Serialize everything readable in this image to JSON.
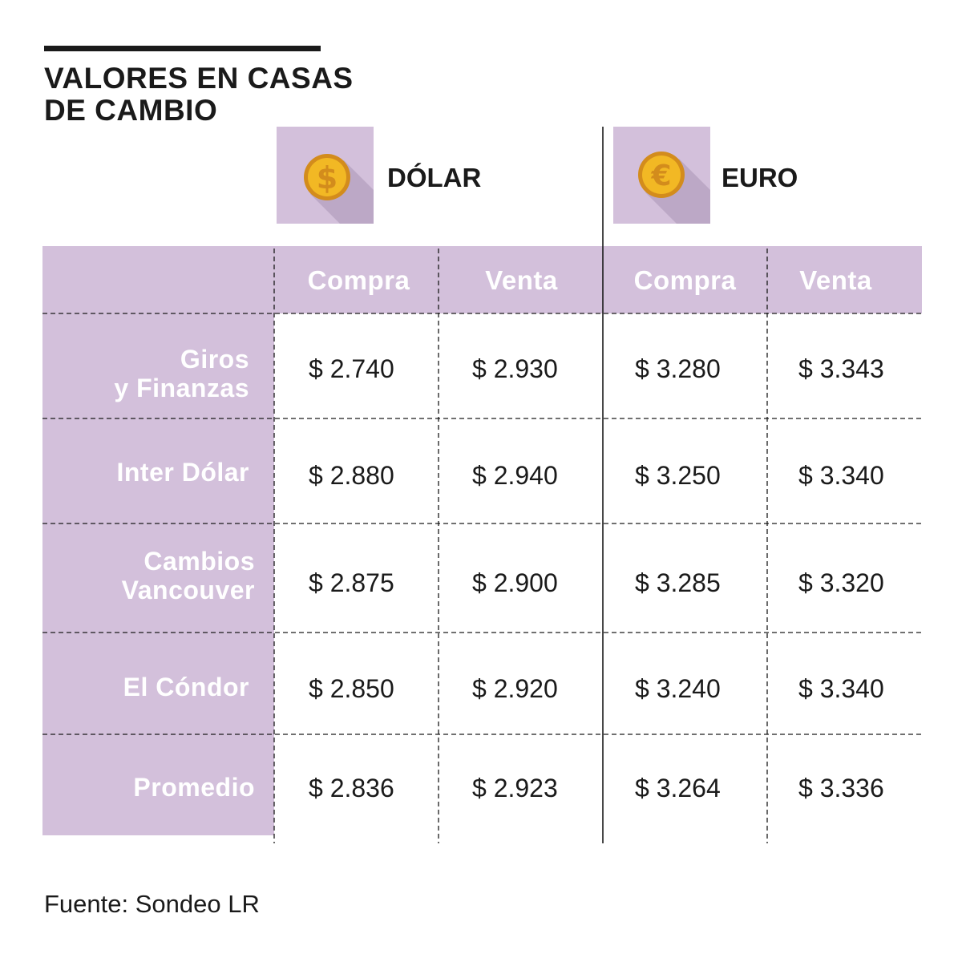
{
  "title_lines": [
    "VALORES EN CASAS",
    "DE CAMBIO"
  ],
  "currencies": [
    {
      "name": "DÓLAR",
      "icon": "dollar-coin-icon",
      "symbol": "$"
    },
    {
      "name": "EURO",
      "icon": "euro-coin-icon",
      "symbol": "€"
    }
  ],
  "columns": [
    "Compra",
    "Venta",
    "Compra",
    "Venta"
  ],
  "rows": [
    {
      "label_lines": [
        "Giros",
        "y Finanzas"
      ],
      "values": [
        "$ 2.740",
        "$ 2.930",
        "$ 3.280",
        "$ 3.343"
      ]
    },
    {
      "label_lines": [
        "Inter Dólar"
      ],
      "values": [
        "$ 2.880",
        "$ 2.940",
        "$ 3.250",
        "$ 3.340"
      ]
    },
    {
      "label_lines": [
        "Cambios",
        "Vancouver"
      ],
      "values": [
        "$ 2.875",
        "$ 2.900",
        "$ 3.285",
        "$ 3.320"
      ]
    },
    {
      "label_lines": [
        "El Cóndor"
      ],
      "values": [
        "$ 2.850",
        "$ 2.920",
        "$ 3.240",
        "$ 3.340"
      ]
    },
    {
      "label_lines": [
        "Promedio"
      ],
      "values": [
        "$ 2.836",
        "$ 2.923",
        "$ 3.264",
        "$ 3.336"
      ]
    }
  ],
  "source": "Fuente: Sondeo LR",
  "colors": {
    "band": "#d3c0db",
    "band_shadow": "#bca8c6",
    "coin": "#f2b824",
    "coin_dark": "#d38c1c",
    "text": "#1a1a1a",
    "header_text": "#ffffff"
  },
  "chart_data": {
    "type": "table",
    "title": "VALORES EN CASAS DE CAMBIO",
    "groups": [
      "DÓLAR",
      "EURO"
    ],
    "columns": [
      "Compra",
      "Venta",
      "Compra",
      "Venta"
    ],
    "rows": [
      "Giros y Finanzas",
      "Inter Dólar",
      "Cambios Vancouver",
      "El Cóndor",
      "Promedio"
    ],
    "series": [
      {
        "name": "DÓLAR Compra",
        "values": [
          2740,
          2880,
          2875,
          2850,
          2836
        ]
      },
      {
        "name": "DÓLAR Venta",
        "values": [
          2930,
          2940,
          2900,
          2920,
          2923
        ]
      },
      {
        "name": "EURO Compra",
        "values": [
          3280,
          3250,
          3285,
          3240,
          3264
        ]
      },
      {
        "name": "EURO Venta",
        "values": [
          3343,
          3340,
          3320,
          3340,
          3336
        ]
      }
    ],
    "source": "Fuente: Sondeo LR"
  }
}
